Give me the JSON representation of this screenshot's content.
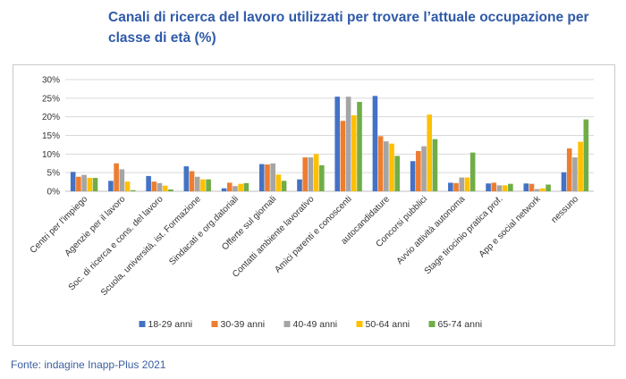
{
  "header": {
    "title": "Canali di ricerca del lavoro utilizzati per trovare l’attuale occupazione per classe di età (%)"
  },
  "footer": {
    "source": "Fonte: indagine Inapp-Plus 2021"
  },
  "colors": [
    "#4472c4",
    "#ed7d31",
    "#a5a5a5",
    "#ffc000",
    "#70ad47"
  ],
  "chart_data": {
    "type": "bar",
    "title": "Canali di ricerca del lavoro utilizzati per trovare l’attuale occupazione per classe di età (%)",
    "ylim": [
      0,
      30
    ],
    "yticks": [
      "0%",
      "5%",
      "10%",
      "15%",
      "20%",
      "25%",
      "30%"
    ],
    "grid": true,
    "legend_position": "bottom",
    "categories": [
      "Centri per l'impiego",
      "Agenzie per il lavoro",
      "Soc. di ricerca e cons. del lavoro",
      "Scuola, università, ist. Formazione",
      "Sindacati e org.datoriali",
      "Offerte sul giornali",
      "Contatti ambiente lavorativo",
      "Amici parenti e conoscenti",
      "autocandidature",
      "Concorsi pubblici",
      "Avvio attività autonoma",
      "Stage tirocinio pratica prof.",
      "App e social network",
      "nessuno"
    ],
    "series": [
      {
        "name": "18-29 anni",
        "values": [
          5.2,
          2.8,
          4.1,
          6.7,
          0.8,
          7.3,
          3.2,
          25.4,
          25.6,
          8.1,
          2.3,
          2.1,
          2.1,
          5.1
        ]
      },
      {
        "name": "30-39 anni",
        "values": [
          3.9,
          7.5,
          2.6,
          5.4,
          2.3,
          7.2,
          9.1,
          18.9,
          14.8,
          10.8,
          2.2,
          2.3,
          2.0,
          11.5
        ]
      },
      {
        "name": "40-49 anni",
        "values": [
          4.4,
          5.9,
          2.2,
          3.9,
          1.4,
          7.5,
          9.1,
          25.4,
          13.4,
          12.1,
          3.7,
          1.6,
          0.6,
          9.1
        ]
      },
      {
        "name": "50-64 anni",
        "values": [
          3.6,
          2.6,
          1.5,
          3.2,
          2.0,
          4.5,
          10.0,
          20.4,
          12.8,
          20.6,
          3.7,
          1.6,
          0.8,
          13.3
        ]
      },
      {
        "name": "65-74 anni",
        "values": [
          3.6,
          0.3,
          0.5,
          3.2,
          2.2,
          2.8,
          7.0,
          24.0,
          9.5,
          14.0,
          10.4,
          2.0,
          1.8,
          19.3
        ]
      }
    ]
  }
}
